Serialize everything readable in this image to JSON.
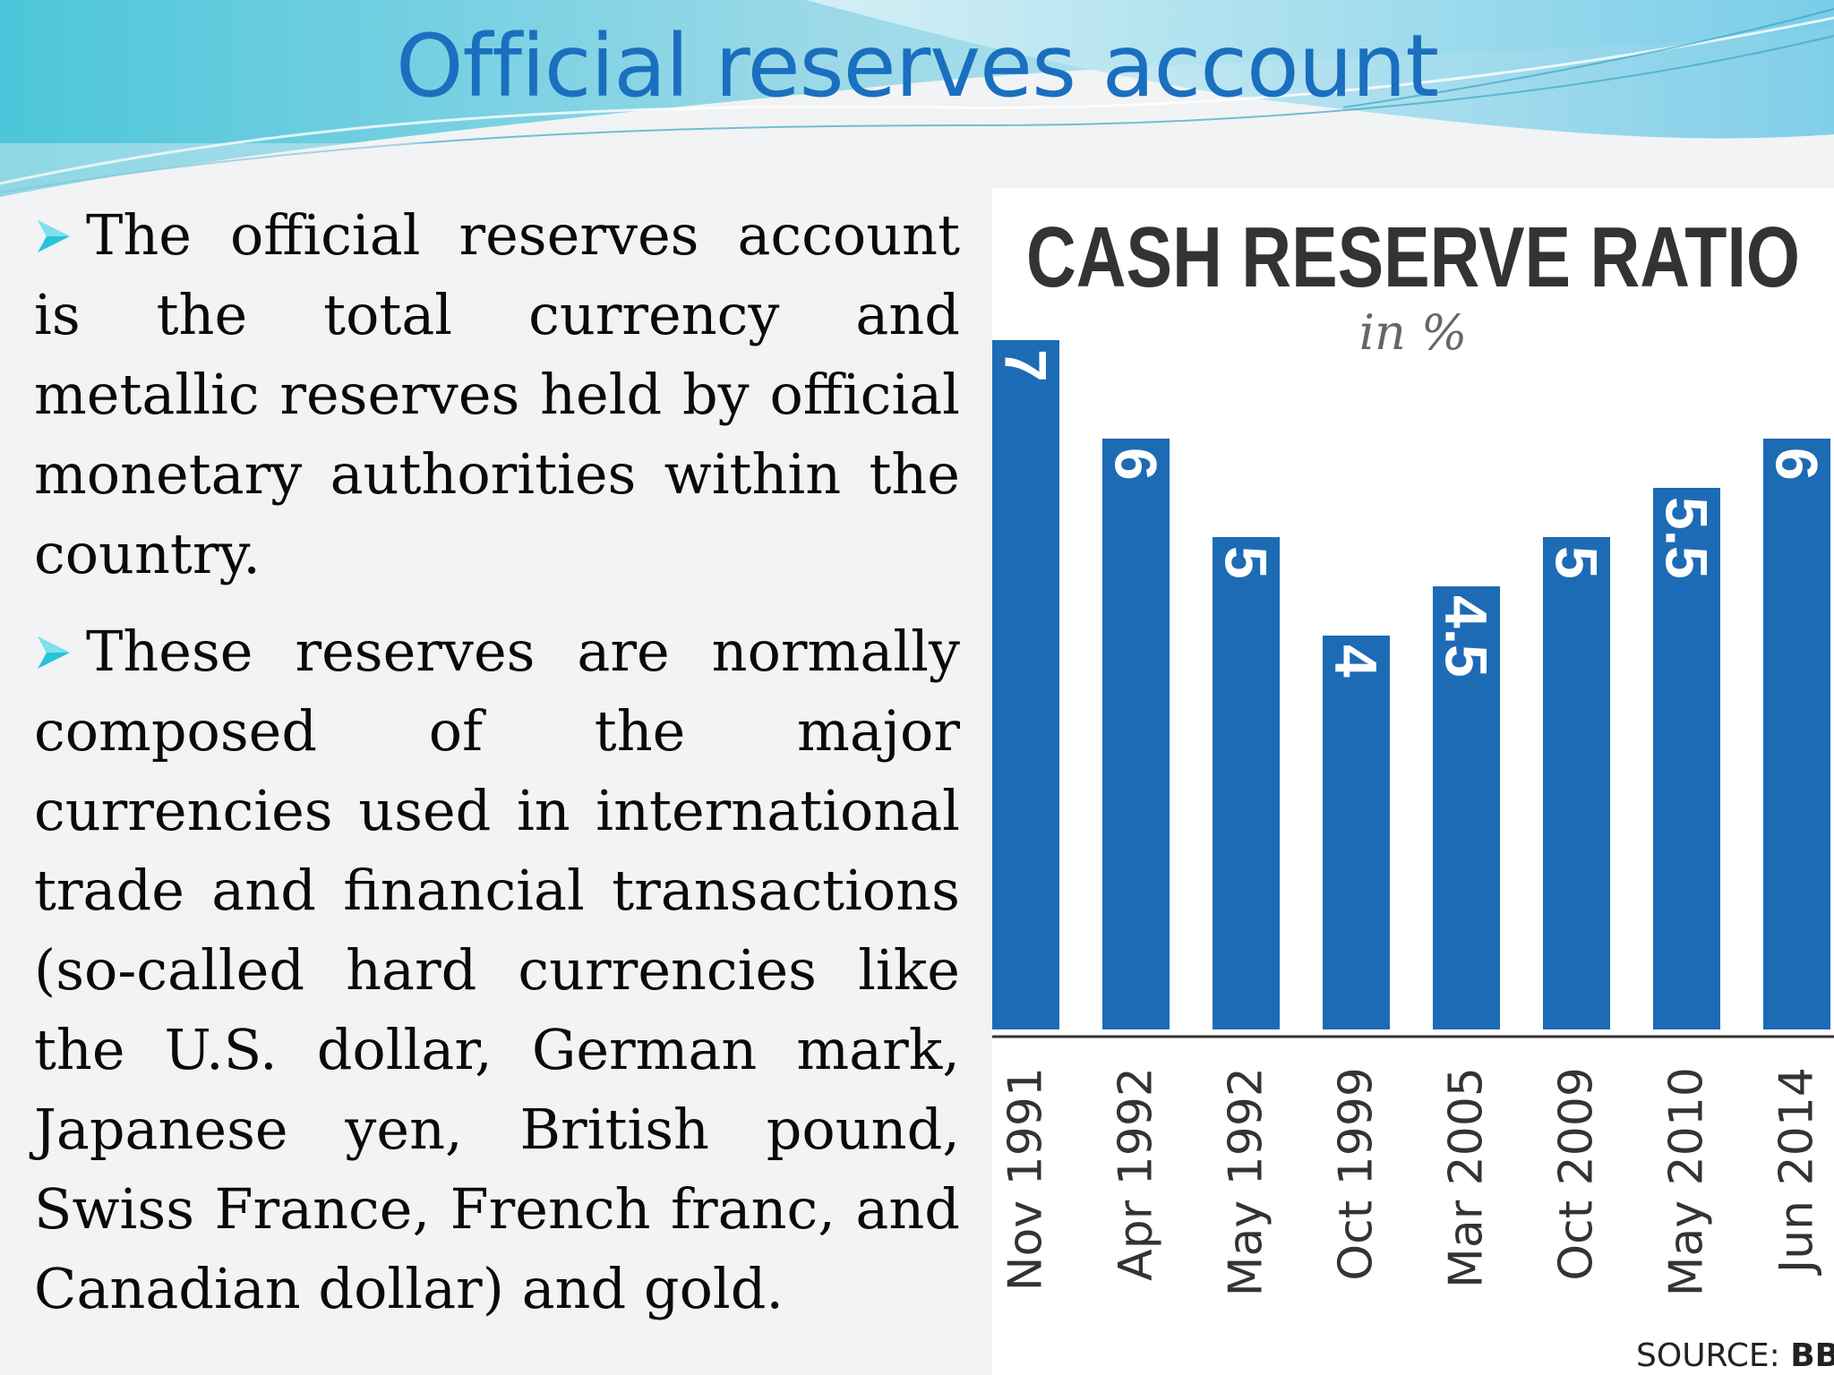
{
  "slide": {
    "title": "Official reserves account",
    "bullets": [
      "The official reserves account is the total currency and metallic reserves held by official monetary authorities within the country.",
      "These reserves are normally composed of the major currencies used in international trade and financial transactions (so-called hard currencies like the U.S. dollar, German mark, Japanese yen, British pound, Swiss France, French franc, and Canadian dollar) and gold."
    ]
  },
  "chart_data": {
    "type": "bar",
    "title": "CASH RESERVE RATIO",
    "subtitle": "in %",
    "categories": [
      "Nov 1991",
      "Apr 1992",
      "May 1992",
      "Oct 1999",
      "Mar 2005",
      "Oct 2009",
      "May 2010",
      "Jun 2014"
    ],
    "values": [
      7,
      6,
      5,
      4,
      4.5,
      5,
      5.5,
      6
    ],
    "value_labels": [
      "7",
      "6",
      "5",
      "4",
      "4.5",
      "5",
      "5.5",
      "6"
    ],
    "source_prefix": "SOURCE:",
    "source_name": "BB",
    "ylim": [
      0,
      7
    ],
    "bar_color": "#1d6bb5",
    "grid": false
  }
}
